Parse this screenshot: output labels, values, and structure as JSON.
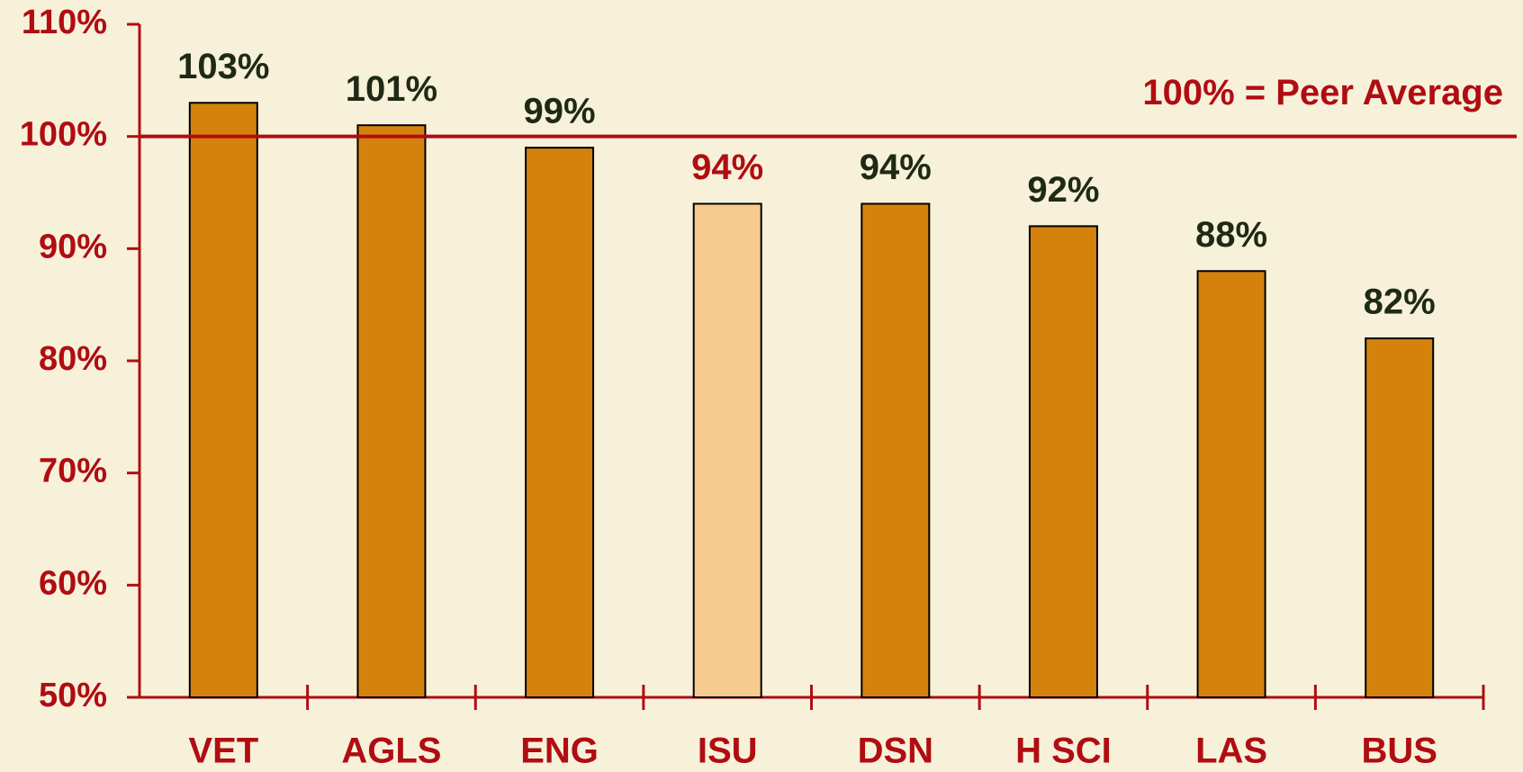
{
  "chart_data": {
    "type": "bar",
    "categories": [
      "VET",
      "AGLS",
      "ENG",
      "ISU",
      "DSN",
      "H SCI",
      "LAS",
      "BUS"
    ],
    "values": [
      103,
      101,
      99,
      94,
      94,
      92,
      88,
      82
    ],
    "value_labels": [
      "103%",
      "101%",
      "99%",
      "94%",
      "94%",
      "92%",
      "88%",
      "82%"
    ],
    "colors": [
      "#d4820c",
      "#d4820c",
      "#d4820c",
      "#f7cb8f",
      "#d4820c",
      "#d4820c",
      "#d4820c",
      "#d4820c"
    ],
    "value_label_colors": [
      "#1f2a14",
      "#1f2a14",
      "#1f2a14",
      "#b00d12",
      "#1f2a14",
      "#1f2a14",
      "#1f2a14",
      "#1f2a14"
    ],
    "ylim": [
      50,
      110
    ],
    "yticks": [
      {
        "value": 50,
        "label": "50%"
      },
      {
        "value": 60,
        "label": "60%"
      },
      {
        "value": 70,
        "label": "70%"
      },
      {
        "value": 80,
        "label": "80%"
      },
      {
        "value": 90,
        "label": "90%"
      },
      {
        "value": 100,
        "label": "100%"
      },
      {
        "value": 110,
        "label": "110%"
      }
    ],
    "axis_color": "#b00d12",
    "reference_line": {
      "value": 100,
      "label": "100% = Peer Average",
      "color": "#b00d12"
    }
  }
}
